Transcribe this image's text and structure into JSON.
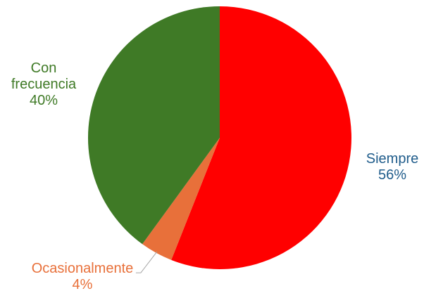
{
  "chart_data": {
    "type": "pie",
    "title": "",
    "slices": [
      {
        "label_lines": [
          "Siempre"
        ],
        "value": 56,
        "value_label": "56%",
        "color": "#FF0000",
        "label_color": "#1F5C8B"
      },
      {
        "label_lines": [
          "Ocasionalmente"
        ],
        "value": 4,
        "value_label": "4%",
        "color": "#E8703A",
        "label_color": "#E8703A"
      },
      {
        "label_lines": [
          "Con",
          "frecuencia"
        ],
        "value": 40,
        "value_label": "40%",
        "color": "#3F7A26",
        "label_color": "#3F7A26"
      }
    ],
    "start_angle": "12 o'clock",
    "direction": "clockwise",
    "legend": "none",
    "leader_line_color": "#A6A6A6"
  }
}
